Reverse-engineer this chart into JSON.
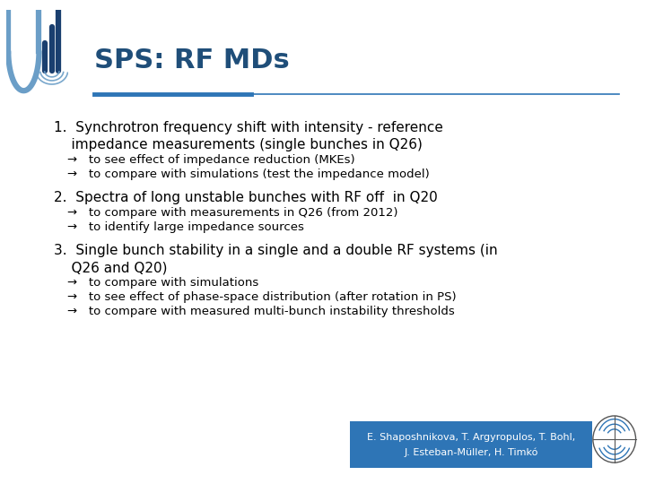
{
  "title": "SPS: RF MDs",
  "title_color": "#1F4E79",
  "background_color": "#ffffff",
  "line_color": "#2E75B6",
  "item1_main_line1": "1.  Synchrotron frequency shift with intensity - reference",
  "item1_main_line2": "    impedance measurements (single bunches in Q26)",
  "item1_sub1": "→   to see effect of impedance reduction (MKEs)",
  "item1_sub2": "→   to compare with simulations (test the impedance model)",
  "item2_main": "2.  Spectra of long unstable bunches with RF off  in Q20",
  "item2_sub1": "→   to compare with measurements in Q26 (from 2012)",
  "item2_sub2": "→   to identify large impedance sources",
  "item3_main_line1": "3.  Single bunch stability in a single and a double RF systems (in",
  "item3_main_line2": "    Q26 and Q20)",
  "item3_sub1": "→   to compare with simulations",
  "item3_sub2": "→   to see effect of phase-space distribution (after rotation in PS)",
  "item3_sub3": "→   to compare with measured multi-bunch instability thresholds",
  "footer_line1": "E. Shaposhnikova, T. Argyropulos, T. Bohl,",
  "footer_line2": "J. Esteban-Müller, H. Timkó",
  "footer_bg": "#2E75B6",
  "footer_text_color": "#ffffff",
  "font_main": 11,
  "font_sub": 9.5,
  "font_title": 22
}
